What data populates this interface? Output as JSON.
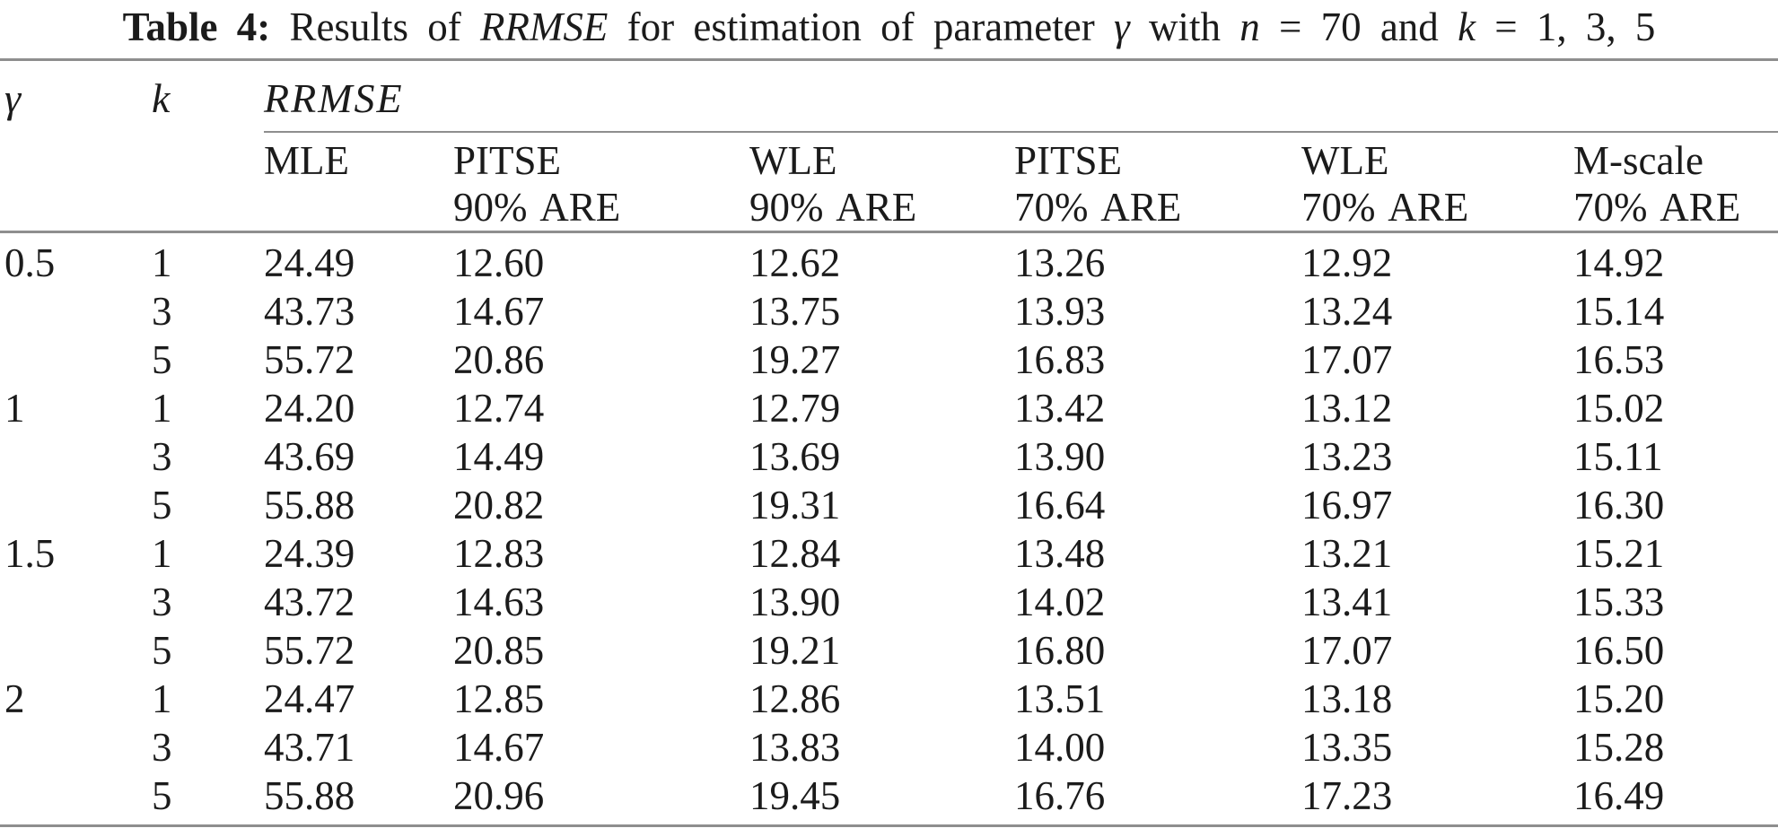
{
  "caption": {
    "segments": [
      {
        "text": "Table 4:",
        "style": "bold"
      },
      {
        "text": " Results of ",
        "style": "regular"
      },
      {
        "text": "RRMSE",
        "style": "italic"
      },
      {
        "text": " for estimation of parameter ",
        "style": "regular"
      },
      {
        "text": "γ",
        "style": "italic"
      },
      {
        "text": " with ",
        "style": "regular"
      },
      {
        "text": "n",
        "style": "italic"
      },
      {
        "text": " = 70 and ",
        "style": "regular"
      },
      {
        "text": "k",
        "style": "italic"
      },
      {
        "text": " = 1, 3, 5",
        "style": "regular"
      }
    ]
  },
  "header": {
    "gamma": "γ",
    "k": "k",
    "rrmse": "RRMSE",
    "cols": [
      {
        "line1": "MLE",
        "line2": ""
      },
      {
        "line1": "PITSE",
        "line2": "90% ARE"
      },
      {
        "line1": "WLE",
        "line2": "90% ARE"
      },
      {
        "line1": "PITSE",
        "line2": "70% ARE"
      },
      {
        "line1": "WLE",
        "line2": "70% ARE"
      },
      {
        "line1": "M-scale",
        "line2": "70% ARE"
      }
    ]
  },
  "table": {
    "rows": [
      {
        "gamma": "0.5",
        "k": "1",
        "v": [
          "24.49",
          "12.60",
          "12.62",
          "13.26",
          "12.92",
          "14.92"
        ]
      },
      {
        "gamma": "",
        "k": "3",
        "v": [
          "43.73",
          "14.67",
          "13.75",
          "13.93",
          "13.24",
          "15.14"
        ]
      },
      {
        "gamma": "",
        "k": "5",
        "v": [
          "55.72",
          "20.86",
          "19.27",
          "16.83",
          "17.07",
          "16.53"
        ]
      },
      {
        "gamma": "1",
        "k": "1",
        "v": [
          "24.20",
          "12.74",
          "12.79",
          "13.42",
          "13.12",
          "15.02"
        ]
      },
      {
        "gamma": "",
        "k": "3",
        "v": [
          "43.69",
          "14.49",
          "13.69",
          "13.90",
          "13.23",
          "15.11"
        ]
      },
      {
        "gamma": "",
        "k": "5",
        "v": [
          "55.88",
          "20.82",
          "19.31",
          "16.64",
          "16.97",
          "16.30"
        ]
      },
      {
        "gamma": "1.5",
        "k": "1",
        "v": [
          "24.39",
          "12.83",
          "12.84",
          "13.48",
          "13.21",
          "15.21"
        ]
      },
      {
        "gamma": "",
        "k": "3",
        "v": [
          "43.72",
          "14.63",
          "13.90",
          "14.02",
          "13.41",
          "15.33"
        ]
      },
      {
        "gamma": "",
        "k": "5",
        "v": [
          "55.72",
          "20.85",
          "19.21",
          "16.80",
          "17.07",
          "16.50"
        ]
      },
      {
        "gamma": "2",
        "k": "1",
        "v": [
          "24.47",
          "12.85",
          "12.86",
          "13.51",
          "13.18",
          "15.20"
        ]
      },
      {
        "gamma": "",
        "k": "3",
        "v": [
          "43.71",
          "14.67",
          "13.83",
          "14.00",
          "13.35",
          "15.28"
        ]
      },
      {
        "gamma": "",
        "k": "5",
        "v": [
          "55.88",
          "20.96",
          "19.45",
          "16.76",
          "17.23",
          "16.49"
        ]
      }
    ]
  },
  "colors": {
    "text": "#1b1b1b",
    "rule": "#8e8e8e",
    "background": "#ffffff"
  }
}
